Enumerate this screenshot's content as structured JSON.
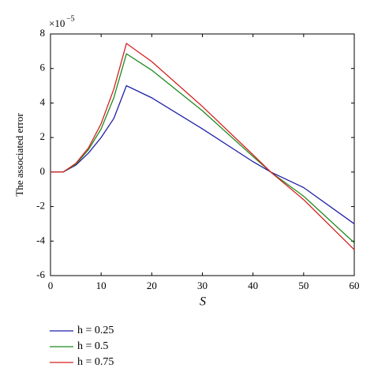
{
  "chart_data": {
    "type": "line",
    "x_label": "S",
    "y_label": "The associated error",
    "y_multiplier": {
      "base": "×10",
      "exponent": "−5"
    },
    "x": [
      0,
      2.5,
      5,
      7.5,
      10,
      12.5,
      15,
      20,
      30,
      40,
      43.5,
      50,
      60
    ],
    "series": [
      {
        "name": "h = 0.25",
        "color": "#1f1fa8",
        "values": [
          0,
          0,
          0.4,
          1.1,
          2.0,
          3.1,
          5.0,
          4.3,
          2.5,
          0.6,
          0,
          -0.9,
          -3.0
        ]
      },
      {
        "name": "h = 0.5",
        "color": "#1e8a1e",
        "values": [
          0,
          0,
          0.45,
          1.3,
          2.5,
          4.3,
          6.85,
          5.9,
          3.55,
          0.9,
          0,
          -1.4,
          -4.1
        ]
      },
      {
        "name": "h = 0.75",
        "color": "#d42020",
        "values": [
          0,
          0,
          0.5,
          1.4,
          2.8,
          4.8,
          7.45,
          6.4,
          3.8,
          1.0,
          0,
          -1.6,
          -4.5
        ]
      }
    ],
    "xlim": [
      0,
      60
    ],
    "xticks": [
      0,
      10,
      20,
      30,
      40,
      50,
      60
    ],
    "ylim": [
      -6,
      8
    ],
    "yticks": [
      -6,
      -4,
      -2,
      0,
      2,
      4,
      6,
      8
    ],
    "grid": false,
    "legend": "bottom-left"
  }
}
